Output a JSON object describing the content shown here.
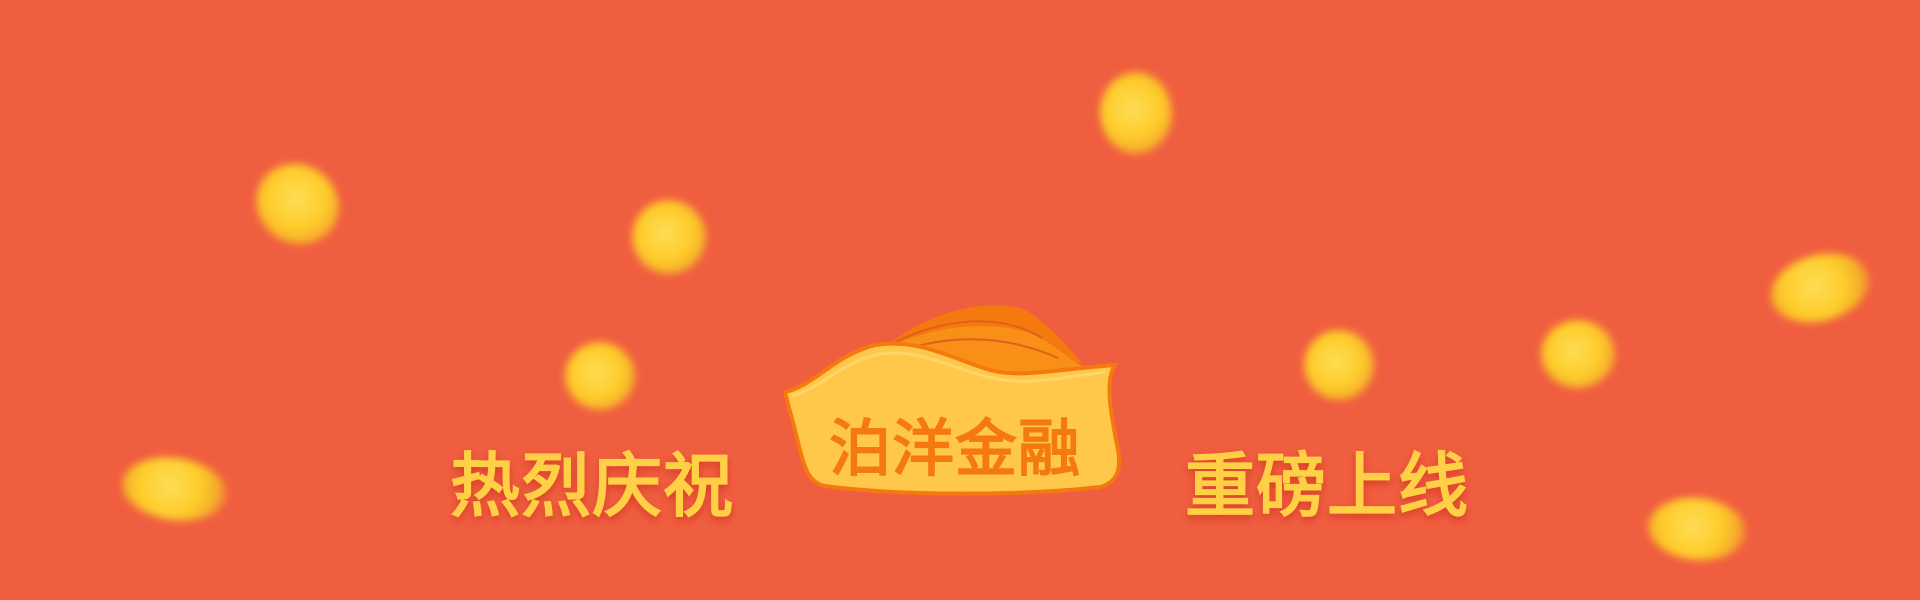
{
  "banner": {
    "background_color": "#f05e40",
    "left_slogan": "热烈庆祝",
    "brand_name": "泊洋金融",
    "right_slogan": "重磅上线",
    "slogan_color": "#ffcf45",
    "brand_text_color": "#f47a10"
  }
}
